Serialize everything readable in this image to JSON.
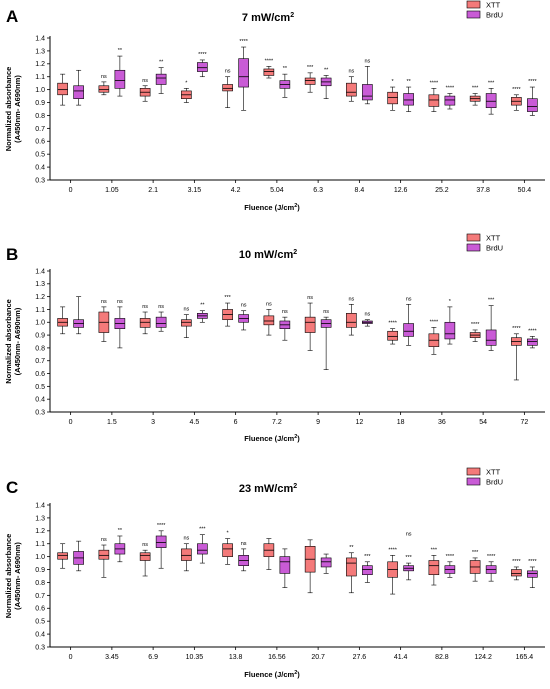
{
  "colors": {
    "xtt": "#f47a7a",
    "brdu": "#c95bd6",
    "axis": "#000000"
  },
  "chart_data": [
    {
      "type": "box",
      "panel_label": "A",
      "title": "7 mW/cm",
      "title_sup": "2",
      "xlabel": "Fluence (J/cm",
      "xlabel_sup": "2",
      "xlabel_tail": ")",
      "ylabel_line1": "Normalized absorbance",
      "ylabel_line2": "(A450nm- A690nm)",
      "ylim": [
        0.3,
        1.4
      ],
      "yticks": [
        "0.3",
        "0.4",
        "0.5",
        "0.6",
        "0.7",
        "0.8",
        "0.9",
        "1.0",
        "1.1",
        "1.2",
        "1.3",
        "1.4"
      ],
      "categories": [
        "0",
        "1.05",
        "2.1",
        "3.15",
        "4.2",
        "5.04",
        "6.3",
        "8.4",
        "12.6",
        "25.2",
        "37.8",
        "50.4"
      ],
      "legend": [
        "XTT",
        "BrdU"
      ],
      "series": [
        {
          "name": "XTT",
          "color": "#f47a7a",
          "boxes": [
            {
              "min": 0.88,
              "q1": 0.96,
              "median": 1.0,
              "q3": 1.05,
              "max": 1.12
            },
            {
              "min": 0.96,
              "q1": 0.98,
              "median": 1.0,
              "q3": 1.03,
              "max": 1.06
            },
            {
              "min": 0.91,
              "q1": 0.95,
              "median": 0.98,
              "q3": 1.01,
              "max": 1.03
            },
            {
              "min": 0.9,
              "q1": 0.93,
              "median": 0.96,
              "q3": 0.99,
              "max": 1.01
            },
            {
              "min": 0.86,
              "q1": 0.99,
              "median": 1.01,
              "q3": 1.04,
              "max": 1.1
            },
            {
              "min": 1.09,
              "q1": 1.11,
              "median": 1.14,
              "q3": 1.16,
              "max": 1.18
            },
            {
              "min": 0.98,
              "q1": 1.04,
              "median": 1.07,
              "q3": 1.09,
              "max": 1.13
            },
            {
              "min": 0.91,
              "q1": 0.95,
              "median": 0.98,
              "q3": 1.05,
              "max": 1.1
            },
            {
              "min": 0.84,
              "q1": 0.89,
              "median": 0.94,
              "q3": 0.98,
              "max": 1.02
            },
            {
              "min": 0.83,
              "q1": 0.87,
              "median": 0.92,
              "q3": 0.96,
              "max": 1.01
            },
            {
              "min": 0.88,
              "q1": 0.91,
              "median": 0.93,
              "q3": 0.95,
              "max": 0.97
            },
            {
              "min": 0.84,
              "q1": 0.88,
              "median": 0.91,
              "q3": 0.94,
              "max": 0.96
            }
          ],
          "sig": [
            "",
            "ns",
            "ns",
            "*",
            "ns",
            "****",
            "***",
            "ns",
            "*",
            "****",
            "***",
            "****"
          ]
        },
        {
          "name": "BrdU",
          "color": "#c95bd6",
          "boxes": [
            {
              "min": 0.88,
              "q1": 0.93,
              "median": 0.99,
              "q3": 1.03,
              "max": 1.15
            },
            {
              "min": 0.95,
              "q1": 1.01,
              "median": 1.07,
              "q3": 1.15,
              "max": 1.26
            },
            {
              "min": 0.97,
              "q1": 1.04,
              "median": 1.09,
              "q3": 1.12,
              "max": 1.17
            },
            {
              "min": 1.1,
              "q1": 1.14,
              "median": 1.17,
              "q3": 1.21,
              "max": 1.23
            },
            {
              "min": 0.84,
              "q1": 1.02,
              "median": 1.1,
              "q3": 1.24,
              "max": 1.33
            },
            {
              "min": 0.94,
              "q1": 1.01,
              "median": 1.04,
              "q3": 1.07,
              "max": 1.12
            },
            {
              "min": 0.93,
              "q1": 1.03,
              "median": 1.06,
              "q3": 1.09,
              "max": 1.11
            },
            {
              "min": 0.89,
              "q1": 0.92,
              "median": 0.95,
              "q3": 1.04,
              "max": 1.18
            },
            {
              "min": 0.83,
              "q1": 0.88,
              "median": 0.92,
              "q3": 0.97,
              "max": 1.02
            },
            {
              "min": 0.85,
              "q1": 0.88,
              "median": 0.92,
              "q3": 0.95,
              "max": 0.97
            },
            {
              "min": 0.81,
              "q1": 0.86,
              "median": 0.91,
              "q3": 0.97,
              "max": 1.01
            },
            {
              "min": 0.8,
              "q1": 0.83,
              "median": 0.87,
              "q3": 0.93,
              "max": 1.02
            }
          ],
          "sig": [
            "",
            "**",
            "**",
            "****",
            "****",
            "**",
            "**",
            "ns",
            "**",
            "****",
            "***",
            "****"
          ]
        }
      ]
    },
    {
      "type": "box",
      "panel_label": "B",
      "title": "10 mW/cm",
      "title_sup": "2",
      "xlabel": "Fluence (J/cm",
      "xlabel_sup": "2",
      "xlabel_tail": ")",
      "ylabel_line1": "Normalized absorbance",
      "ylabel_line2": "(A450nm- A690nm)",
      "ylim": [
        0.3,
        1.4
      ],
      "yticks": [
        "0.3",
        "0.4",
        "0.5",
        "0.6",
        "0.7",
        "0.8",
        "0.9",
        "1.0",
        "1.1",
        "1.2",
        "1.3",
        "1.4"
      ],
      "categories": [
        "0",
        "1.5",
        "3",
        "4.5",
        "6",
        "7.2",
        "9",
        "12",
        "18",
        "36",
        "54",
        "72"
      ],
      "legend": [
        "XTT",
        "BrdU"
      ],
      "series": [
        {
          "name": "XTT",
          "color": "#f47a7a",
          "boxes": [
            {
              "min": 0.91,
              "q1": 0.97,
              "median": 1.0,
              "q3": 1.03,
              "max": 1.12
            },
            {
              "min": 0.85,
              "q1": 0.92,
              "median": 1.0,
              "q3": 1.08,
              "max": 1.12
            },
            {
              "min": 0.91,
              "q1": 0.96,
              "median": 1.0,
              "q3": 1.03,
              "max": 1.08
            },
            {
              "min": 0.88,
              "q1": 0.97,
              "median": 1.0,
              "q3": 1.02,
              "max": 1.06
            },
            {
              "min": 0.97,
              "q1": 1.02,
              "median": 1.06,
              "q3": 1.1,
              "max": 1.15
            },
            {
              "min": 0.9,
              "q1": 0.98,
              "median": 1.01,
              "q3": 1.05,
              "max": 1.1
            },
            {
              "min": 0.78,
              "q1": 0.92,
              "median": 1.0,
              "q3": 1.04,
              "max": 1.15
            },
            {
              "min": 0.9,
              "q1": 0.96,
              "median": 1.0,
              "q3": 1.07,
              "max": 1.14
            },
            {
              "min": 0.83,
              "q1": 0.86,
              "median": 0.89,
              "q3": 0.93,
              "max": 0.95
            },
            {
              "min": 0.75,
              "q1": 0.81,
              "median": 0.86,
              "q3": 0.91,
              "max": 0.96
            },
            {
              "min": 0.85,
              "q1": 0.88,
              "median": 0.9,
              "q3": 0.92,
              "max": 0.94
            },
            {
              "min": 0.55,
              "q1": 0.82,
              "median": 0.85,
              "q3": 0.88,
              "max": 0.91
            }
          ],
          "sig": [
            "",
            "ns",
            "ns",
            "ns",
            "***",
            "ns",
            "ns",
            "ns",
            "****",
            "****",
            "****",
            "****"
          ]
        },
        {
          "name": "BrdU",
          "color": "#c95bd6",
          "boxes": [
            {
              "min": 0.91,
              "q1": 0.96,
              "median": 0.99,
              "q3": 1.02,
              "max": 1.2
            },
            {
              "min": 0.8,
              "q1": 0.95,
              "median": 0.99,
              "q3": 1.03,
              "max": 1.12
            },
            {
              "min": 0.93,
              "q1": 0.96,
              "median": 0.99,
              "q3": 1.04,
              "max": 1.08
            },
            {
              "min": 1.0,
              "q1": 1.03,
              "median": 1.05,
              "q3": 1.07,
              "max": 1.09
            },
            {
              "min": 0.94,
              "q1": 1.0,
              "median": 1.03,
              "q3": 1.06,
              "max": 1.09
            },
            {
              "min": 0.86,
              "q1": 0.95,
              "median": 0.98,
              "q3": 1.01,
              "max": 1.04
            },
            {
              "min": 0.63,
              "q1": 0.96,
              "median": 0.99,
              "q3": 1.02,
              "max": 1.04
            },
            {
              "min": 0.97,
              "q1": 0.99,
              "median": 1.0,
              "q3": 1.01,
              "max": 1.02
            },
            {
              "min": 0.82,
              "q1": 0.89,
              "median": 0.93,
              "q3": 0.99,
              "max": 1.14
            },
            {
              "min": 0.83,
              "q1": 0.87,
              "median": 0.91,
              "q3": 1.0,
              "max": 1.12
            },
            {
              "min": 0.78,
              "q1": 0.82,
              "median": 0.86,
              "q3": 0.94,
              "max": 1.13
            },
            {
              "min": 0.8,
              "q1": 0.82,
              "median": 0.85,
              "q3": 0.87,
              "max": 0.89
            }
          ],
          "sig": [
            "",
            "ns",
            "ns",
            "**",
            "ns",
            "ns",
            "ns",
            "ns",
            "ns",
            "*",
            "***",
            "****"
          ]
        }
      ]
    },
    {
      "type": "box",
      "panel_label": "C",
      "title": "23 mW/cm",
      "title_sup": "2",
      "xlabel": "Fluence (J/cm",
      "xlabel_sup": "2",
      "xlabel_tail": ")",
      "ylabel_line1": "Normalized absorbance",
      "ylabel_line2": "(A450nm- A690nm)",
      "ylim": [
        0.3,
        1.4
      ],
      "yticks": [
        "0.3",
        "0.4",
        "0.5",
        "0.6",
        "0.7",
        "0.8",
        "0.9",
        "1.0",
        "1.1",
        "1.2",
        "1.3",
        "1.4"
      ],
      "categories": [
        "0",
        "3.45",
        "6.9",
        "10.35",
        "13.8",
        "16.56",
        "20.7",
        "27.6",
        "41.4",
        "82.8",
        "124.2",
        "165.4"
      ],
      "legend": [
        "XTT",
        "BrdU"
      ],
      "series": [
        {
          "name": "XTT",
          "color": "#f47a7a",
          "boxes": [
            {
              "min": 0.91,
              "q1": 0.98,
              "median": 1.01,
              "q3": 1.03,
              "max": 1.1
            },
            {
              "min": 0.84,
              "q1": 0.98,
              "median": 1.01,
              "q3": 1.05,
              "max": 1.09
            },
            {
              "min": 0.85,
              "q1": 0.97,
              "median": 1.01,
              "q3": 1.03,
              "max": 1.05
            },
            {
              "min": 0.89,
              "q1": 0.97,
              "median": 1.01,
              "q3": 1.06,
              "max": 1.1
            },
            {
              "min": 0.94,
              "q1": 1.0,
              "median": 1.06,
              "q3": 1.1,
              "max": 1.14
            },
            {
              "min": 0.9,
              "q1": 1.0,
              "median": 1.05,
              "q3": 1.1,
              "max": 1.14
            },
            {
              "min": 0.72,
              "q1": 0.88,
              "median": 0.98,
              "q3": 1.08,
              "max": 1.13
            },
            {
              "min": 0.72,
              "q1": 0.85,
              "median": 0.95,
              "q3": 0.99,
              "max": 1.03
            },
            {
              "min": 0.71,
              "q1": 0.84,
              "median": 0.9,
              "q3": 0.96,
              "max": 1.01
            },
            {
              "min": 0.78,
              "q1": 0.86,
              "median": 0.93,
              "q3": 0.97,
              "max": 1.01
            },
            {
              "min": 0.81,
              "q1": 0.87,
              "median": 0.92,
              "q3": 0.97,
              "max": 0.99
            },
            {
              "min": 0.82,
              "q1": 0.85,
              "median": 0.87,
              "q3": 0.9,
              "max": 0.92
            }
          ],
          "sig": [
            "",
            "ns",
            "ns",
            "ns",
            "*",
            "",
            "",
            "**",
            "****",
            "***",
            "***",
            "****"
          ]
        },
        {
          "name": "BrdU",
          "color": "#c95bd6",
          "boxes": [
            {
              "min": 0.89,
              "q1": 0.94,
              "median": 0.99,
              "q3": 1.04,
              "max": 1.12
            },
            {
              "min": 0.96,
              "q1": 1.02,
              "median": 1.06,
              "q3": 1.1,
              "max": 1.16
            },
            {
              "min": 0.91,
              "q1": 1.07,
              "median": 1.11,
              "q3": 1.16,
              "max": 1.2
            },
            {
              "min": 0.95,
              "q1": 1.02,
              "median": 1.05,
              "q3": 1.1,
              "max": 1.17
            },
            {
              "min": 0.89,
              "q1": 0.93,
              "median": 0.97,
              "q3": 1.01,
              "max": 1.06
            },
            {
              "min": 0.76,
              "q1": 0.87,
              "median": 0.96,
              "q3": 1.0,
              "max": 1.06
            },
            {
              "min": 0.87,
              "q1": 0.92,
              "median": 0.96,
              "q3": 0.99,
              "max": 1.02
            },
            {
              "min": 0.8,
              "q1": 0.86,
              "median": 0.9,
              "q3": 0.93,
              "max": 0.96
            },
            {
              "min": 0.82,
              "q1": 0.89,
              "median": 0.91,
              "q3": 0.93,
              "max": 0.95
            },
            {
              "min": 0.84,
              "q1": 0.87,
              "median": 0.9,
              "q3": 0.93,
              "max": 0.96
            },
            {
              "min": 0.81,
              "q1": 0.87,
              "median": 0.9,
              "q3": 0.93,
              "max": 0.96
            },
            {
              "min": 0.76,
              "q1": 0.84,
              "median": 0.87,
              "q3": 0.89,
              "max": 0.92
            }
          ],
          "sig": [
            "",
            "**",
            "****",
            "***",
            "ns",
            "",
            "",
            "***",
            "***",
            "****",
            "****",
            "****"
          ]
        }
      ],
      "extra_sig": [
        {
          "category_index": 8,
          "text": "ns"
        }
      ]
    }
  ]
}
